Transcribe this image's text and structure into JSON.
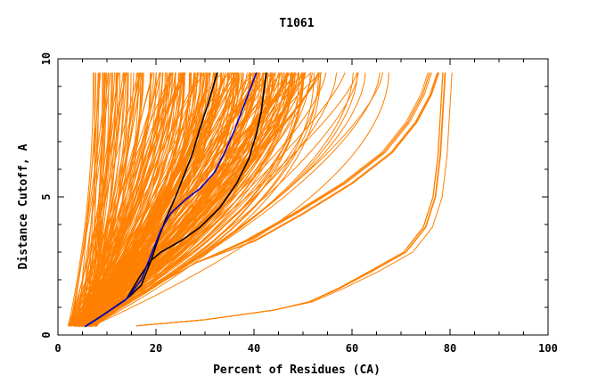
{
  "chart_data": {
    "type": "line",
    "title": "T1061",
    "xlabel": "Percent of Residues (CA)",
    "ylabel": "Distance Cutoff, A",
    "xlim": [
      0,
      100
    ],
    "ylim": [
      0,
      10
    ],
    "x_ticks": [
      "0",
      "20",
      "40",
      "60",
      "80",
      "100"
    ],
    "y_ticks": [
      "0",
      "5",
      "10"
    ],
    "grid": false,
    "legend": "none",
    "colors": {
      "models": "#ff8000",
      "highlight_black": "#000000",
      "highlight_blue": "#0000cc"
    },
    "series": [
      {
        "color": "#000000",
        "x": [
          5.5,
          9,
          14,
          17,
          19,
          20.5,
          22,
          24,
          26,
          27.5,
          29,
          30.5,
          31.5,
          32.5
        ],
        "y": [
          0.3,
          0.7,
          1.3,
          1.8,
          2.7,
          3.5,
          4.2,
          5.0,
          5.9,
          6.6,
          7.5,
          8.3,
          8.9,
          9.5
        ]
      },
      {
        "color": "#000000",
        "x": [
          5.5,
          9,
          14,
          17,
          19,
          21,
          25,
          29,
          33,
          36.5,
          39,
          40.5,
          41.5,
          42,
          42.5
        ],
        "y": [
          0.3,
          0.7,
          1.3,
          2.2,
          2.7,
          3.0,
          3.4,
          3.9,
          4.6,
          5.5,
          6.4,
          7.3,
          8.1,
          8.8,
          9.5
        ]
      },
      {
        "color": "#0000cc",
        "x": [
          5.5,
          9,
          14,
          17,
          19,
          21,
          23,
          26,
          29,
          32,
          34,
          36,
          37.5,
          39,
          40.5
        ],
        "y": [
          0.3,
          0.7,
          1.3,
          2.0,
          2.9,
          3.8,
          4.4,
          4.9,
          5.3,
          5.9,
          6.6,
          7.4,
          8.1,
          8.8,
          9.5
        ]
      }
    ]
  }
}
